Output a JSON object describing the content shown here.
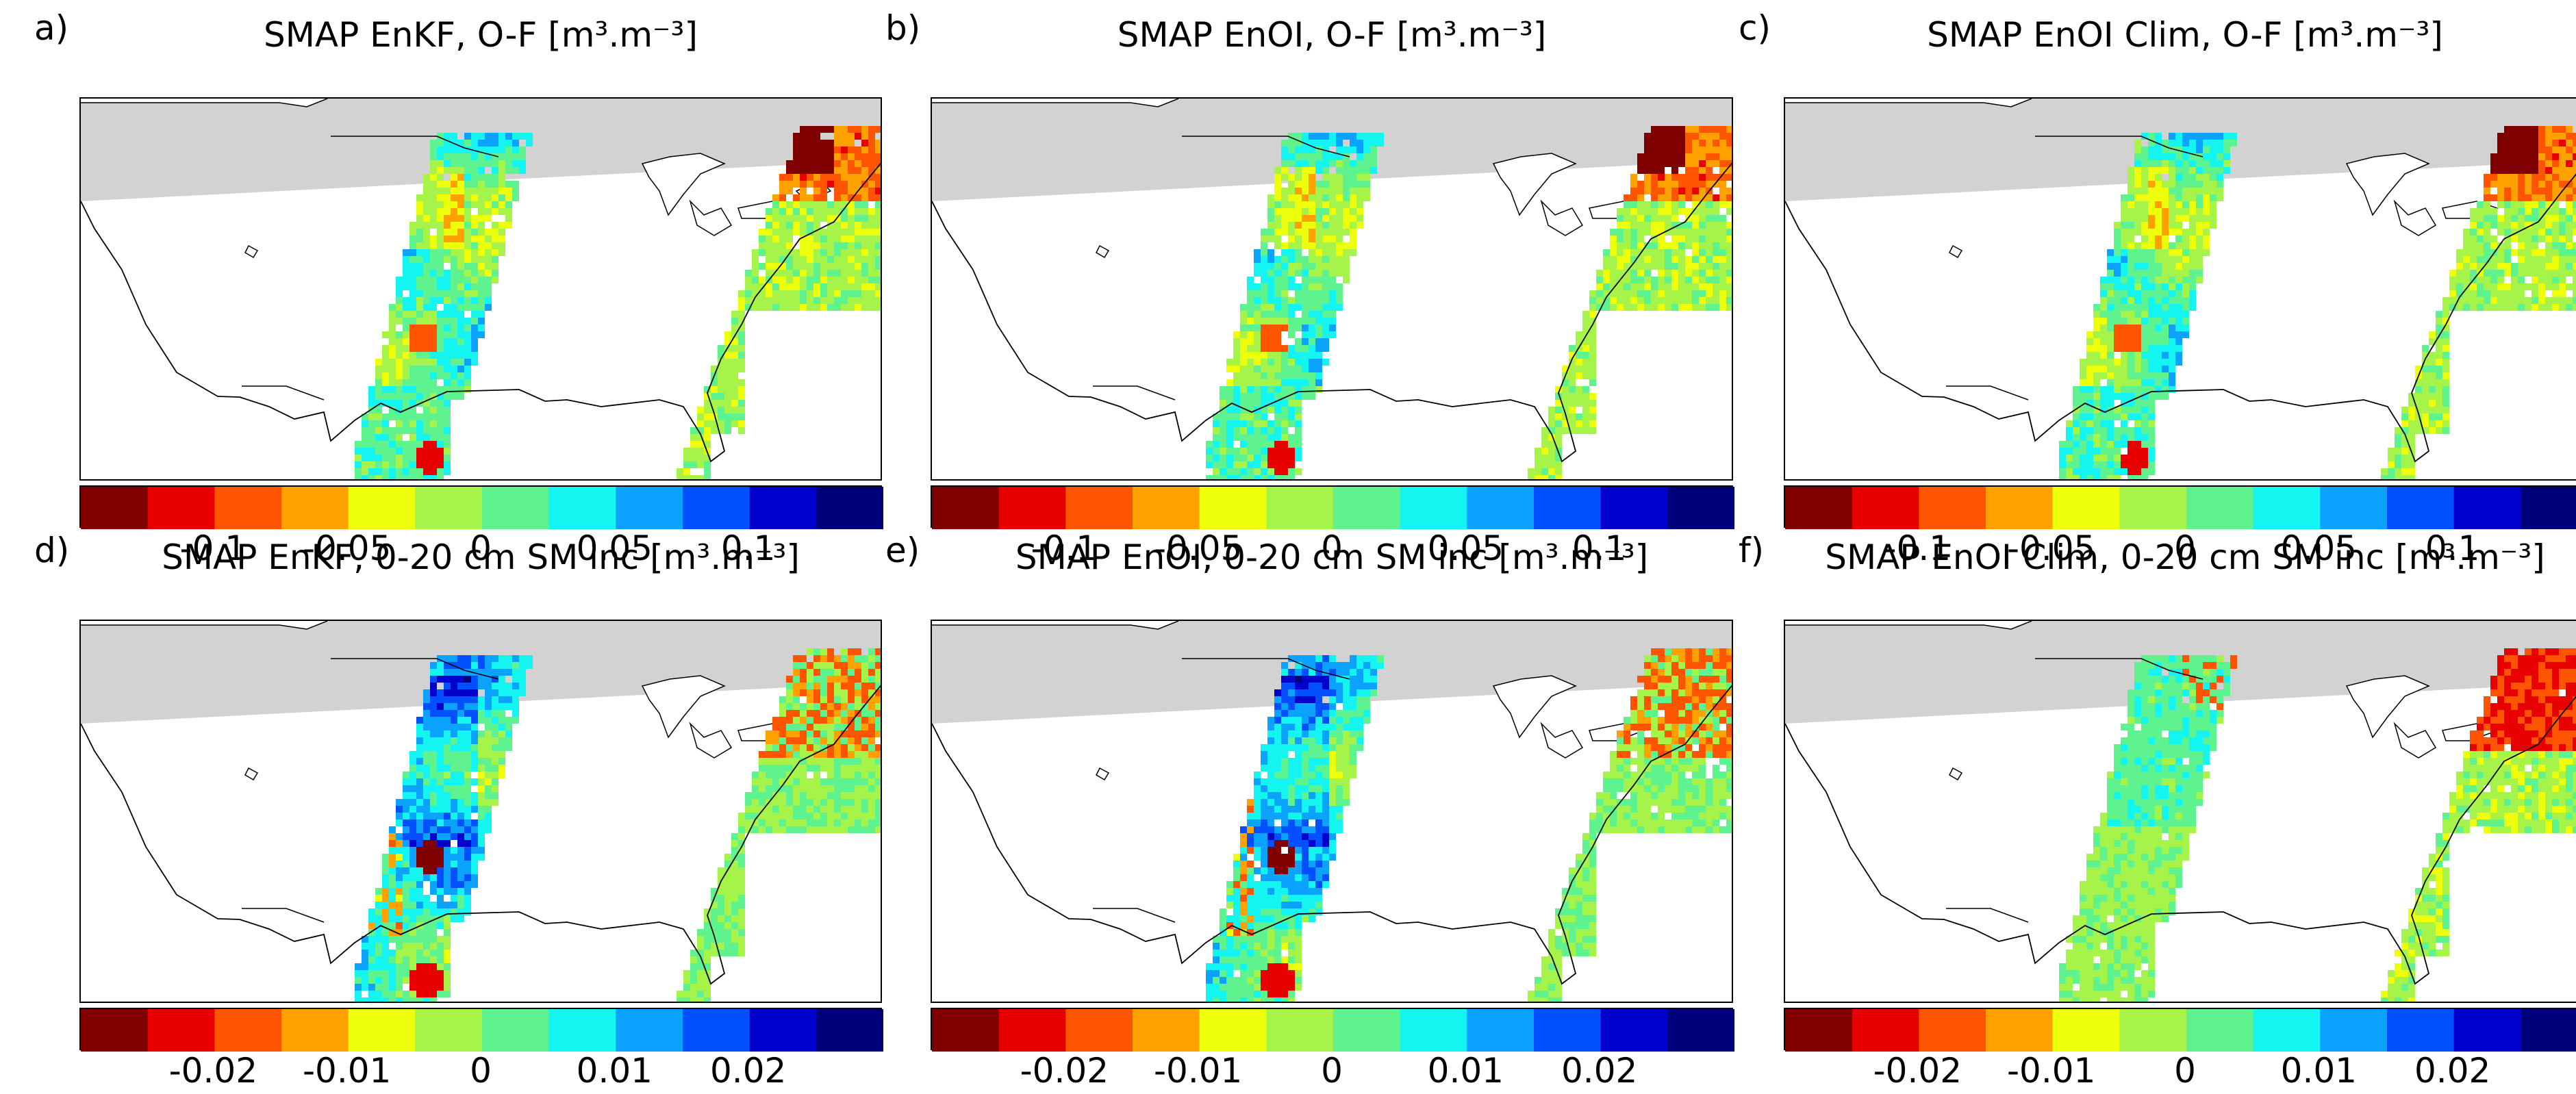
{
  "colors": [
    "#800000",
    "#e80000",
    "#ff5500",
    "#ffa200",
    "#edff0a",
    "#a6f449",
    "#5ef38e",
    "#14f5f2",
    "#0ca2ff",
    "#0050ff",
    "#0000cd",
    "#00007b"
  ],
  "panels": [
    {
      "label": "a)",
      "title": "SMAP EnKF, O-F [m³.m⁻³]",
      "scale": "of",
      "variant": "enkf_of"
    },
    {
      "label": "b)",
      "title": "SMAP EnOI, O-F [m³.m⁻³]",
      "scale": "of",
      "variant": "enoi_of"
    },
    {
      "label": "c)",
      "title": "SMAP EnOI Clim, O-F [m³.m⁻³]",
      "scale": "of",
      "variant": "clim_of"
    },
    {
      "label": "d)",
      "title": "SMAP EnKF,  0-20 cm SM inc [m³.m⁻³]",
      "scale": "inc",
      "variant": "enkf_inc"
    },
    {
      "label": "e)",
      "title": "SMAP EnOI, 0-20 cm SM inc [m³.m⁻³]",
      "scale": "inc",
      "variant": "enoi_inc"
    },
    {
      "label": "f)",
      "title": "SMAP EnOI Clim,  0-20 cm SM inc [m³.m⁻³]",
      "scale": "inc",
      "variant": "clim_inc"
    }
  ],
  "colorbars": {
    "of": {
      "range": [
        -0.15,
        0.15
      ],
      "ticks": [
        -0.1,
        -0.05,
        0,
        0.05,
        0.1
      ],
      "tick_labels": [
        "-0.1",
        "-0.05",
        "0",
        "0.05",
        "0.1"
      ]
    },
    "inc": {
      "range": [
        -0.03,
        0.03
      ],
      "ticks": [
        -0.02,
        -0.01,
        0,
        0.01,
        0.02
      ],
      "tick_labels": [
        "-0.02",
        "-0.01",
        "0",
        "0.01",
        "0.02"
      ]
    }
  },
  "chart_data": [
    {
      "type": "heatmap",
      "title": "SMAP EnKF, O-F [m³.m⁻³]",
      "colorbar_range": [
        -0.15,
        0.15
      ],
      "colorbar_ticks": [
        -0.1,
        -0.05,
        0,
        0.05,
        0.1
      ],
      "levels": 12
    },
    {
      "type": "heatmap",
      "title": "SMAP EnOI, O-F [m³.m⁻³]",
      "colorbar_range": [
        -0.15,
        0.15
      ],
      "colorbar_ticks": [
        -0.1,
        -0.05,
        0,
        0.05,
        0.1
      ],
      "levels": 12
    },
    {
      "type": "heatmap",
      "title": "SMAP EnOI Clim, O-F [m³.m⁻³]",
      "colorbar_range": [
        -0.15,
        0.15
      ],
      "colorbar_ticks": [
        -0.1,
        -0.05,
        0,
        0.05,
        0.1
      ],
      "levels": 12
    },
    {
      "type": "heatmap",
      "title": "SMAP EnKF,  0-20 cm SM inc [m³.m⁻³]",
      "colorbar_range": [
        -0.03,
        0.03
      ],
      "colorbar_ticks": [
        -0.02,
        -0.01,
        0,
        0.01,
        0.02
      ],
      "levels": 12
    },
    {
      "type": "heatmap",
      "title": "SMAP EnOI, 0-20 cm SM inc [m³.m⁻³]",
      "colorbar_range": [
        -0.03,
        0.03
      ],
      "colorbar_ticks": [
        -0.02,
        -0.01,
        0,
        0.01,
        0.02
      ],
      "levels": 12
    },
    {
      "type": "heatmap",
      "title": "SMAP EnOI Clim,  0-20 cm SM inc [m³.m⁻³]",
      "colorbar_range": [
        -0.03,
        0.03
      ],
      "colorbar_ticks": [
        -0.02,
        -0.01,
        0,
        0.01,
        0.02
      ],
      "levels": 12
    }
  ]
}
